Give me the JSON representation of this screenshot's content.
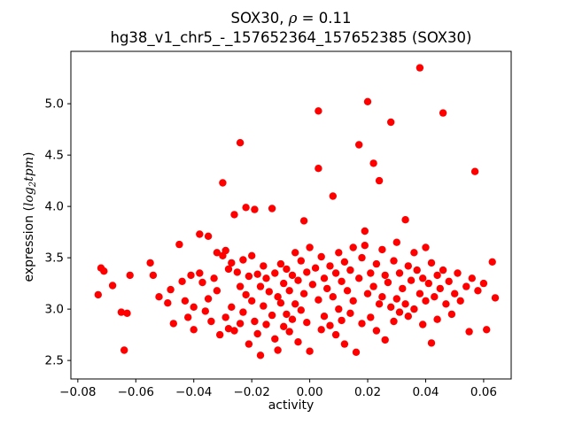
{
  "chart": {
    "title_prefix": "SOX30, ",
    "title_rho": "ρ",
    "title_rest": " = 0.11",
    "title_line2": "hg38_v1_chr5_-_157652364_157652385 (SOX30)",
    "xlabel": "activity",
    "ylabel": {
      "prefix": "expression (",
      "math_log": "log",
      "sub": "2",
      "math_rest": "tpm",
      "close": ")"
    }
  },
  "chart_data": {
    "type": "scatter",
    "title": "SOX30, ρ = 0.11",
    "subtitle": "hg38_v1_chr5_-_157652364_157652385 (SOX30)",
    "xlabel": "activity",
    "ylabel": "expression (log2 tpm)",
    "marker_color": "#ff0000",
    "marker_radius": 4.2,
    "grid": false,
    "legend": false,
    "xlim": [
      -0.0824,
      0.0695
    ],
    "ylim": [
      2.32,
      5.51
    ],
    "xticks": [
      -0.08,
      -0.06,
      -0.04,
      -0.02,
      0.0,
      0.02,
      0.04,
      0.06
    ],
    "xtick_labels": [
      "−0.08",
      "−0.06",
      "−0.04",
      "−0.02",
      "0.00",
      "0.02",
      "0.04",
      "0.06"
    ],
    "yticks": [
      2.5,
      3.0,
      3.5,
      4.0,
      4.5,
      5.0
    ],
    "ytick_labels": [
      "2.5",
      "3.0",
      "3.5",
      "4.0",
      "4.5",
      "5.0"
    ],
    "points": [
      [
        -0.073,
        3.14
      ],
      [
        -0.072,
        3.4
      ],
      [
        -0.071,
        3.37
      ],
      [
        -0.068,
        3.23
      ],
      [
        -0.065,
        2.97
      ],
      [
        -0.064,
        2.6
      ],
      [
        -0.063,
        2.96
      ],
      [
        -0.062,
        3.33
      ],
      [
        -0.055,
        3.45
      ],
      [
        -0.054,
        3.33
      ],
      [
        -0.052,
        3.12
      ],
      [
        -0.049,
        3.06
      ],
      [
        -0.048,
        3.19
      ],
      [
        -0.047,
        2.86
      ],
      [
        -0.045,
        3.63
      ],
      [
        -0.044,
        3.27
      ],
      [
        -0.043,
        3.08
      ],
      [
        -0.042,
        2.92
      ],
      [
        -0.041,
        3.33
      ],
      [
        -0.04,
        3.02
      ],
      [
        -0.04,
        2.8
      ],
      [
        -0.038,
        3.73
      ],
      [
        -0.038,
        3.35
      ],
      [
        -0.037,
        3.26
      ],
      [
        -0.036,
        2.98
      ],
      [
        -0.035,
        3.71
      ],
      [
        -0.035,
        3.1
      ],
      [
        -0.034,
        2.88
      ],
      [
        -0.033,
        3.3
      ],
      [
        -0.032,
        3.55
      ],
      [
        -0.032,
        3.18
      ],
      [
        -0.031,
        2.75
      ],
      [
        -0.03,
        4.23
      ],
      [
        -0.03,
        3.52
      ],
      [
        -0.029,
        3.57
      ],
      [
        -0.029,
        2.92
      ],
      [
        -0.028,
        3.39
      ],
      [
        -0.028,
        2.81
      ],
      [
        -0.027,
        3.45
      ],
      [
        -0.027,
        3.02
      ],
      [
        -0.026,
        3.92
      ],
      [
        -0.026,
        2.79
      ],
      [
        -0.025,
        3.36
      ],
      [
        -0.024,
        4.62
      ],
      [
        -0.024,
        3.22
      ],
      [
        -0.024,
        2.86
      ],
      [
        -0.023,
        3.48
      ],
      [
        -0.023,
        2.97
      ],
      [
        -0.022,
        3.99
      ],
      [
        -0.022,
        3.14
      ],
      [
        -0.021,
        3.32
      ],
      [
        -0.021,
        2.66
      ],
      [
        -0.02,
        3.52
      ],
      [
        -0.02,
        3.08
      ],
      [
        -0.019,
        3.97
      ],
      [
        -0.019,
        2.88
      ],
      [
        -0.018,
        3.34
      ],
      [
        -0.018,
        2.76
      ],
      [
        -0.017,
        3.22
      ],
      [
        -0.017,
        2.55
      ],
      [
        -0.016,
        3.42
      ],
      [
        -0.016,
        3.03
      ],
      [
        -0.015,
        3.3
      ],
      [
        -0.015,
        2.85
      ],
      [
        -0.014,
        3.17
      ],
      [
        -0.013,
        3.98
      ],
      [
        -0.013,
        2.94
      ],
      [
        -0.012,
        3.35
      ],
      [
        -0.012,
        2.71
      ],
      [
        -0.011,
        3.12
      ],
      [
        -0.011,
        2.6
      ],
      [
        -0.01,
        3.44
      ],
      [
        -0.01,
        3.06
      ],
      [
        -0.009,
        3.25
      ],
      [
        -0.009,
        2.83
      ],
      [
        -0.008,
        3.39
      ],
      [
        -0.008,
        2.95
      ],
      [
        -0.007,
        3.18
      ],
      [
        -0.007,
        2.78
      ],
      [
        -0.006,
        3.33
      ],
      [
        -0.006,
        2.9
      ],
      [
        -0.005,
        3.55
      ],
      [
        -0.005,
        3.05
      ],
      [
        -0.004,
        3.28
      ],
      [
        -0.004,
        2.68
      ],
      [
        -0.003,
        3.47
      ],
      [
        -0.003,
        2.99
      ],
      [
        -0.002,
        3.86
      ],
      [
        -0.002,
        3.15
      ],
      [
        -0.001,
        3.36
      ],
      [
        -0.001,
        2.87
      ],
      [
        0.0,
        3.6
      ],
      [
        0.0,
        2.59
      ],
      [
        0.001,
        3.24
      ],
      [
        0.002,
        3.4
      ],
      [
        0.003,
        4.93
      ],
      [
        0.003,
        4.37
      ],
      [
        0.003,
        3.09
      ],
      [
        0.004,
        3.51
      ],
      [
        0.004,
        2.8
      ],
      [
        0.005,
        3.3
      ],
      [
        0.005,
        2.93
      ],
      [
        0.006,
        3.2
      ],
      [
        0.007,
        3.42
      ],
      [
        0.007,
        2.84
      ],
      [
        0.008,
        4.1
      ],
      [
        0.008,
        3.12
      ],
      [
        0.009,
        3.35
      ],
      [
        0.009,
        2.75
      ],
      [
        0.01,
        3.55
      ],
      [
        0.01,
        3.0
      ],
      [
        0.011,
        3.27
      ],
      [
        0.011,
        2.89
      ],
      [
        0.012,
        3.46
      ],
      [
        0.012,
        2.66
      ],
      [
        0.013,
        3.18
      ],
      [
        0.014,
        3.38
      ],
      [
        0.014,
        2.96
      ],
      [
        0.015,
        3.6
      ],
      [
        0.015,
        3.08
      ],
      [
        0.016,
        2.58
      ],
      [
        0.017,
        4.6
      ],
      [
        0.017,
        3.3
      ],
      [
        0.018,
        3.5
      ],
      [
        0.018,
        2.86
      ],
      [
        0.019,
        3.76
      ],
      [
        0.019,
        3.62
      ],
      [
        0.02,
        5.02
      ],
      [
        0.02,
        3.15
      ],
      [
        0.021,
        3.35
      ],
      [
        0.021,
        2.92
      ],
      [
        0.022,
        4.42
      ],
      [
        0.022,
        3.22
      ],
      [
        0.023,
        3.44
      ],
      [
        0.023,
        2.79
      ],
      [
        0.024,
        4.25
      ],
      [
        0.024,
        3.05
      ],
      [
        0.025,
        3.58
      ],
      [
        0.025,
        3.12
      ],
      [
        0.026,
        3.33
      ],
      [
        0.026,
        2.7
      ],
      [
        0.027,
        3.26
      ],
      [
        0.028,
        4.82
      ],
      [
        0.028,
        3.02
      ],
      [
        0.029,
        3.47
      ],
      [
        0.029,
        2.88
      ],
      [
        0.03,
        3.65
      ],
      [
        0.03,
        3.1
      ],
      [
        0.031,
        3.35
      ],
      [
        0.031,
        2.97
      ],
      [
        0.032,
        3.2
      ],
      [
        0.033,
        3.87
      ],
      [
        0.033,
        3.05
      ],
      [
        0.034,
        3.42
      ],
      [
        0.034,
        2.93
      ],
      [
        0.035,
        3.28
      ],
      [
        0.036,
        3.55
      ],
      [
        0.036,
        3.0
      ],
      [
        0.037,
        3.38
      ],
      [
        0.038,
        5.35
      ],
      [
        0.038,
        3.15
      ],
      [
        0.039,
        3.3
      ],
      [
        0.039,
        2.85
      ],
      [
        0.04,
        3.6
      ],
      [
        0.04,
        3.08
      ],
      [
        0.041,
        3.25
      ],
      [
        0.042,
        2.67
      ],
      [
        0.042,
        3.45
      ],
      [
        0.043,
        3.12
      ],
      [
        0.044,
        3.33
      ],
      [
        0.044,
        2.9
      ],
      [
        0.045,
        3.2
      ],
      [
        0.046,
        4.91
      ],
      [
        0.046,
        3.38
      ],
      [
        0.047,
        3.05
      ],
      [
        0.048,
        3.27
      ],
      [
        0.049,
        2.95
      ],
      [
        0.05,
        3.15
      ],
      [
        0.051,
        3.35
      ],
      [
        0.052,
        3.08
      ],
      [
        0.054,
        3.22
      ],
      [
        0.055,
        2.78
      ],
      [
        0.056,
        3.3
      ],
      [
        0.057,
        4.34
      ],
      [
        0.058,
        3.18
      ],
      [
        0.06,
        3.25
      ],
      [
        0.061,
        2.8
      ],
      [
        0.063,
        3.46
      ],
      [
        0.064,
        3.11
      ]
    ]
  }
}
